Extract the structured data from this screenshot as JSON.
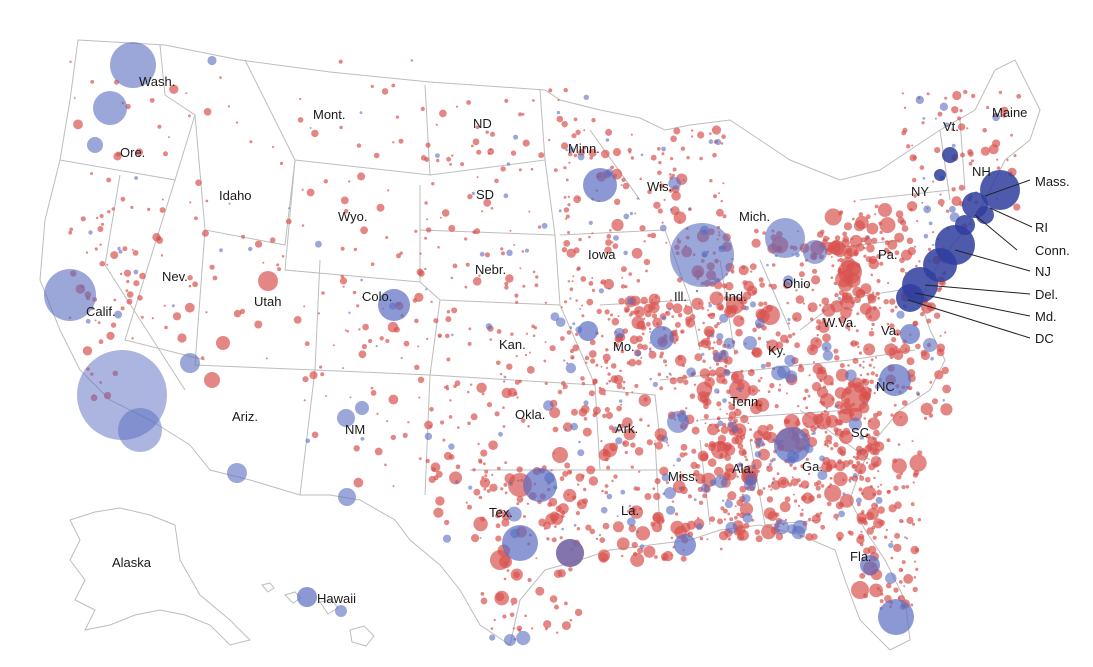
{
  "colors": {
    "republican": "#d9534f",
    "democrat": "#5a6cc0",
    "democrat_core": "#2f3e9e",
    "border": "#bdbdbd",
    "background": "#ffffff"
  },
  "state_labels": {
    "wash": "Wash.",
    "ore": "Ore.",
    "calif": "Calif.",
    "nev": "Nev.",
    "idaho": "Idaho",
    "mont": "Mont.",
    "wyo": "Wyo.",
    "utah": "Utah",
    "colo": "Colo.",
    "ariz": "Ariz.",
    "nm": "NM",
    "nd": "ND",
    "sd": "SD",
    "nebr": "Nebr.",
    "kan": "Kan.",
    "okla": "Okla.",
    "tex": "Tex.",
    "minn": "Minn.",
    "iowa": "Iowa",
    "mo": "Mo.",
    "ark": "Ark.",
    "la": "La.",
    "wis": "Wis.",
    "ill": "Ill.",
    "mich": "Mich.",
    "ind": "Ind.",
    "ohio": "Ohio",
    "ky": "Ky.",
    "tenn": "Tenn.",
    "miss": "Miss.",
    "ala": "Ala.",
    "ga": "Ga.",
    "fla": "Fla.",
    "sc": "SC",
    "nc": "NC",
    "va": "Va.",
    "wva": "W.Va.",
    "pa": "Pa.",
    "ny": "NY",
    "vt": "Vt.",
    "nh": "NH",
    "maine": "Maine",
    "alaska": "Alaska",
    "hawaii": "Hawaii"
  },
  "callouts": {
    "mass": "Mass.",
    "ri": "RI",
    "conn": "Conn.",
    "nj": "NJ",
    "del": "Del.",
    "md": "Md.",
    "dc": "DC"
  }
}
